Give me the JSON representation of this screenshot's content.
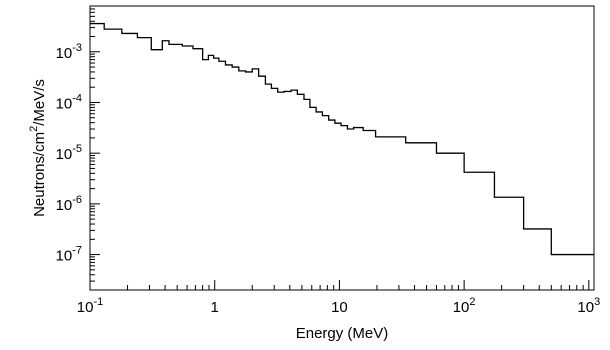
{
  "chart_data": {
    "type": "line",
    "title": "",
    "xlabel": "Energy (MeV)",
    "ylabel_parts": [
      "Neutrons/cm",
      "2",
      "/MeV/s"
    ],
    "x_scale": "log",
    "y_scale": "log",
    "xlim": [
      0.1,
      1100
    ],
    "ylim": [
      2e-08,
      0.008
    ],
    "grid": false,
    "x_ticks": [
      {
        "value": 0.1,
        "base": "10",
        "exp": "-1"
      },
      {
        "value": 1,
        "base": "1",
        "exp": ""
      },
      {
        "value": 10,
        "base": "10",
        "exp": ""
      },
      {
        "value": 100,
        "base": "10",
        "exp": "2"
      },
      {
        "value": 1000,
        "base": "10",
        "exp": "3"
      }
    ],
    "y_ticks": [
      {
        "value": 1e-07,
        "base": "10",
        "exp": "-7"
      },
      {
        "value": 1e-06,
        "base": "10",
        "exp": "-6"
      },
      {
        "value": 1e-05,
        "base": "10",
        "exp": "-5"
      },
      {
        "value": 0.0001,
        "base": "10",
        "exp": "-4"
      },
      {
        "value": 0.001,
        "base": "10",
        "exp": "-3"
      }
    ],
    "series": [
      {
        "style": "step-histogram",
        "bin_edges": [
          0.1,
          0.13,
          0.18,
          0.24,
          0.31,
          0.38,
          0.43,
          0.55,
          0.67,
          0.8,
          0.89,
          0.98,
          1.08,
          1.22,
          1.38,
          1.56,
          1.77,
          2.0,
          2.25,
          2.55,
          2.85,
          3.2,
          3.6,
          4.1,
          4.6,
          5.2,
          5.8,
          6.5,
          7.3,
          8.2,
          9.2,
          10.3,
          11.6,
          13.0,
          15.5,
          19.5,
          34,
          60,
          100,
          175,
          300,
          500,
          1100
        ],
        "values": [
          0.0036,
          0.0028,
          0.0023,
          0.0019,
          0.0011,
          0.00165,
          0.0014,
          0.0013,
          0.00115,
          0.0007,
          0.00085,
          0.00075,
          0.00065,
          0.00055,
          0.0005,
          0.00042,
          0.0004,
          0.00046,
          0.00033,
          0.00023,
          0.00019,
          0.00016,
          0.000165,
          0.000175,
          0.000145,
          0.000115,
          8e-05,
          6.5e-05,
          5.5e-05,
          4.5e-05,
          3.9e-05,
          3.5e-05,
          3e-05,
          3.2e-05,
          2.8e-05,
          2.1e-05,
          1.6e-05,
          1e-05,
          4.2e-06,
          1.35e-06,
          3.2e-07,
          1e-07
        ]
      }
    ]
  }
}
